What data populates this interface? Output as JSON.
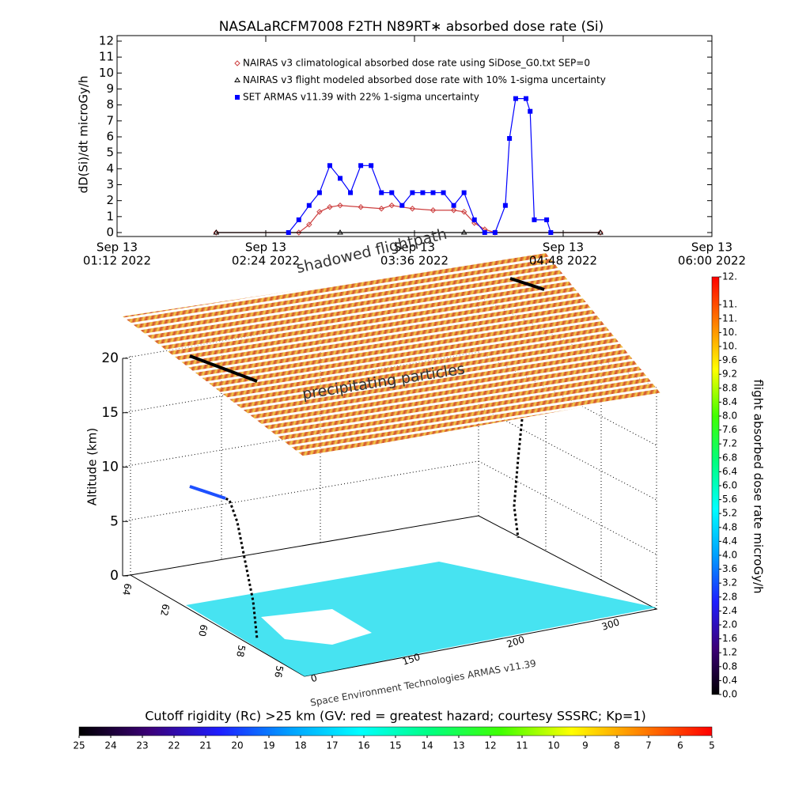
{
  "chart_data": [
    {
      "type": "line",
      "title": "NASALaRCFM7008  F2TH N89RT∗ absorbed dose rate (Si)",
      "ylabel": "dD(Si)/dt microGy/h",
      "xlim": [
        "2022-09-13T01:12",
        "2022-09-13T06:00"
      ],
      "xticks": [
        {
          "value": "2022-09-13T01:12",
          "label": [
            "Sep 13",
            "01:12 2022"
          ]
        },
        {
          "value": "2022-09-13T02:24",
          "label": [
            "Sep 13",
            "02:24 2022"
          ]
        },
        {
          "value": "2022-09-13T03:36",
          "label": [
            "Sep 13",
            "03:36 2022"
          ]
        },
        {
          "value": "2022-09-13T04:48",
          "label": [
            "Sep 13",
            "04:48 2022"
          ]
        },
        {
          "value": "2022-09-13T06:00",
          "label": [
            "Sep 13",
            "06:00 2022"
          ]
        }
      ],
      "ylim": [
        0,
        12
      ],
      "yticks": [
        0,
        1,
        2,
        3,
        4,
        5,
        6,
        7,
        8,
        9,
        10,
        11,
        12
      ],
      "legend": "upper left",
      "series": [
        {
          "name": "NAIRAS v3 climatological absorbed dose rate using SiDose_G0.txt SEP=0",
          "color": "#cd4040",
          "marker": "diamond",
          "x": [
            "2022-09-13T02:00",
            "2022-09-13T02:40",
            "2022-09-13T02:45",
            "2022-09-13T02:50",
            "2022-09-13T02:55",
            "2022-09-13T03:00",
            "2022-09-13T03:10",
            "2022-09-13T03:20",
            "2022-09-13T03:25",
            "2022-09-13T03:35",
            "2022-09-13T03:45",
            "2022-09-13T03:55",
            "2022-09-13T04:00",
            "2022-09-13T04:05",
            "2022-09-13T04:10",
            "2022-09-13T04:15",
            "2022-09-13T05:06"
          ],
          "values": [
            0,
            0,
            0.5,
            1.3,
            1.6,
            1.7,
            1.6,
            1.5,
            1.7,
            1.5,
            1.4,
            1.4,
            1.3,
            0.6,
            0.2,
            0,
            0
          ]
        },
        {
          "name": "NAIRAS v3 flight modeled absorbed dose rate with 10% 1-sigma uncertainty",
          "color": "#000000",
          "marker": "triangle",
          "x": [
            "2022-09-13T02:00",
            "2022-09-13T03:00",
            "2022-09-13T04:00",
            "2022-09-13T05:06"
          ],
          "values": [
            0,
            0,
            0,
            0
          ]
        },
        {
          "name": "SET ARMAS v11.39 with 22% 1-sigma uncertainty",
          "color": "#0000ff",
          "marker": "square",
          "x": [
            "2022-09-13T02:35",
            "2022-09-13T02:40",
            "2022-09-13T02:45",
            "2022-09-13T02:50",
            "2022-09-13T02:55",
            "2022-09-13T03:00",
            "2022-09-13T03:05",
            "2022-09-13T03:10",
            "2022-09-13T03:15",
            "2022-09-13T03:20",
            "2022-09-13T03:25",
            "2022-09-13T03:30",
            "2022-09-13T03:35",
            "2022-09-13T03:40",
            "2022-09-13T03:45",
            "2022-09-13T03:50",
            "2022-09-13T03:55",
            "2022-09-13T04:00",
            "2022-09-13T04:05",
            "2022-09-13T04:10",
            "2022-09-13T04:15",
            "2022-09-13T04:20",
            "2022-09-13T04:22",
            "2022-09-13T04:25",
            "2022-09-13T04:30",
            "2022-09-13T04:32",
            "2022-09-13T04:34",
            "2022-09-13T04:40",
            "2022-09-13T04:42"
          ],
          "values": [
            0,
            0.8,
            1.7,
            2.5,
            4.2,
            3.4,
            2.5,
            4.2,
            4.2,
            2.5,
            2.5,
            1.7,
            2.5,
            2.5,
            2.5,
            2.5,
            1.7,
            2.5,
            0.8,
            0,
            0,
            1.7,
            5.9,
            8.4,
            8.4,
            7.6,
            0.8,
            0.8,
            0
          ]
        }
      ]
    },
    {
      "type": "surface3d",
      "ylabel": "Altitude (km)",
      "ylim": [
        0,
        20
      ],
      "yticks": [
        0,
        5,
        10,
        15,
        20
      ],
      "xticks": [
        0,
        150,
        200,
        300
      ],
      "zticks": [
        64,
        62,
        60,
        58,
        56
      ],
      "annotations": [
        "shadowed flightpath",
        "precipitating particles",
        "Space Environment Technologies ARMAS v11.39"
      ]
    },
    {
      "type": "colorbar",
      "orientation": "vertical",
      "label": "flight absorbed dose rate microGy/h",
      "lim": [
        0,
        12
      ],
      "ticks": [
        {
          "value": 0,
          "label": "0.0"
        },
        0.4,
        0.8,
        1.2,
        1.6,
        {
          "value": 2,
          "label": "2.0"
        },
        2.4,
        2.8,
        3.2,
        3.6,
        {
          "value": 4,
          "label": "4.0"
        },
        4.4,
        4.8,
        5.2,
        5.6,
        {
          "value": 6,
          "label": "6.0"
        },
        6.4,
        6.8,
        7.2,
        7.6,
        {
          "value": 8,
          "label": "8.0"
        },
        8.4,
        8.8,
        9.2,
        9.6,
        {
          "value": 10,
          "label": "10."
        },
        {
          "value": 10.4,
          "label": "10."
        },
        {
          "value": 10.8,
          "label": "11."
        },
        {
          "value": 11.2,
          "label": "11."
        },
        {
          "value": 12,
          "label": "12."
        }
      ],
      "colors": [
        "#000000",
        "#3c0078",
        "#1e1eff",
        "#00a0ff",
        "#00ffff",
        "#00ff80",
        "#40ff00",
        "#ffff00",
        "#ff8000",
        "#ff0000"
      ]
    },
    {
      "type": "colorbar",
      "orientation": "horizontal",
      "label": "Cutoff rigidity (Rc) >25 km (GV: red = greatest hazard; courtesy SSSRC; Kp=1)",
      "lim": [
        25,
        5
      ],
      "ticks": [
        25,
        24,
        23,
        22,
        21,
        20,
        19,
        18,
        17,
        16,
        15,
        14,
        13,
        12,
        11,
        10,
        9,
        8,
        7,
        6,
        5
      ],
      "colors": [
        "#000000",
        "#3c0078",
        "#1e1eff",
        "#00a0ff",
        "#00ffff",
        "#00ff80",
        "#40ff00",
        "#ffff00",
        "#ff8000",
        "#ff0000"
      ]
    }
  ]
}
